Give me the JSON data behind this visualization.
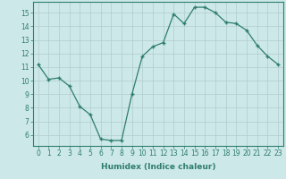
{
  "x": [
    0,
    1,
    2,
    3,
    4,
    5,
    6,
    7,
    8,
    9,
    10,
    11,
    12,
    13,
    14,
    15,
    16,
    17,
    18,
    19,
    20,
    21,
    22,
    23
  ],
  "y": [
    11.2,
    10.1,
    10.2,
    9.6,
    8.1,
    7.5,
    5.7,
    5.6,
    5.6,
    9.0,
    11.8,
    12.5,
    12.8,
    14.9,
    14.2,
    15.4,
    15.4,
    15.0,
    14.3,
    14.2,
    13.7,
    12.6,
    11.8,
    11.2
  ],
  "line_color": "#2e7d6e",
  "marker": "+",
  "bg_color": "#cce8e8",
  "grid_color": "#b0cccc",
  "xlabel": "Humidex (Indice chaleur)",
  "xlim": [
    -0.5,
    23.5
  ],
  "ylim": [
    5.2,
    15.8
  ],
  "yticks": [
    6,
    7,
    8,
    9,
    10,
    11,
    12,
    13,
    14,
    15
  ],
  "xticks": [
    0,
    1,
    2,
    3,
    4,
    5,
    6,
    7,
    8,
    9,
    10,
    11,
    12,
    13,
    14,
    15,
    16,
    17,
    18,
    19,
    20,
    21,
    22,
    23
  ],
  "tick_color": "#2e7d6e",
  "label_color": "#2e7d6e",
  "axis_color": "#2e7d6e",
  "tick_fontsize": 5.5,
  "xlabel_fontsize": 6.5
}
